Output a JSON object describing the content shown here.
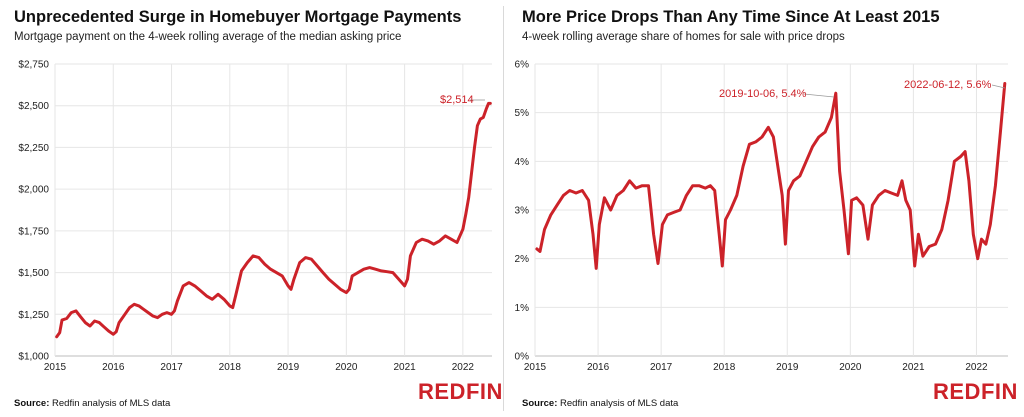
{
  "brand": {
    "logo": "REDFIN",
    "accent": "#cc2229",
    "grid": "#e6e6e6"
  },
  "source": {
    "label": "Source:",
    "text": "Redfin analysis of MLS data"
  },
  "chart_data": [
    {
      "type": "line",
      "title": "Unprecedented Surge in Homebuyer Mortgage Payments",
      "subtitle": "Mortgage payment on the 4-week rolling average of the median asking price",
      "x_ticks": [
        "2015",
        "2016",
        "2017",
        "2018",
        "2019",
        "2020",
        "2021",
        "2022"
      ],
      "y_ticks": [
        "$1,000",
        "$1,250",
        "$1,500",
        "$1,750",
        "$2,000",
        "$2,250",
        "$2,500",
        "$2,750"
      ],
      "xlim": [
        2015.0,
        2022.5
      ],
      "ylim": [
        1000,
        2750
      ],
      "grid": true,
      "series": [
        {
          "color": "#cc2229",
          "x": [
            2015.03,
            2015.08,
            2015.12,
            2015.2,
            2015.28,
            2015.36,
            2015.44,
            2015.52,
            2015.6,
            2015.68,
            2015.76,
            2015.84,
            2015.92,
            2016.0,
            2016.05,
            2016.1,
            2016.2,
            2016.28,
            2016.36,
            2016.44,
            2016.52,
            2016.6,
            2016.68,
            2016.76,
            2016.84,
            2016.92,
            2017.0,
            2017.05,
            2017.1,
            2017.2,
            2017.3,
            2017.4,
            2017.5,
            2017.6,
            2017.7,
            2017.8,
            2017.9,
            2018.0,
            2018.05,
            2018.1,
            2018.2,
            2018.3,
            2018.4,
            2018.5,
            2018.6,
            2018.7,
            2018.8,
            2018.9,
            2019.0,
            2019.05,
            2019.1,
            2019.2,
            2019.3,
            2019.4,
            2019.5,
            2019.6,
            2019.7,
            2019.8,
            2019.9,
            2020.0,
            2020.05,
            2020.1,
            2020.2,
            2020.3,
            2020.4,
            2020.5,
            2020.6,
            2020.7,
            2020.8,
            2020.9,
            2021.0,
            2021.05,
            2021.1,
            2021.2,
            2021.3,
            2021.4,
            2021.5,
            2021.6,
            2021.7,
            2021.8,
            2021.9,
            2022.0,
            2022.05,
            2022.1,
            2022.15,
            2022.2,
            2022.25,
            2022.3,
            2022.35,
            2022.4,
            2022.44,
            2022.47
          ],
          "y": [
            1115,
            1140,
            1215,
            1225,
            1260,
            1270,
            1235,
            1200,
            1180,
            1210,
            1200,
            1175,
            1150,
            1130,
            1145,
            1200,
            1250,
            1290,
            1310,
            1300,
            1280,
            1260,
            1240,
            1230,
            1250,
            1260,
            1250,
            1270,
            1330,
            1420,
            1440,
            1420,
            1390,
            1360,
            1340,
            1370,
            1340,
            1300,
            1290,
            1360,
            1510,
            1560,
            1600,
            1590,
            1550,
            1520,
            1500,
            1480,
            1420,
            1400,
            1460,
            1560,
            1590,
            1580,
            1540,
            1500,
            1460,
            1430,
            1400,
            1380,
            1400,
            1480,
            1500,
            1520,
            1530,
            1520,
            1510,
            1505,
            1500,
            1460,
            1420,
            1460,
            1600,
            1680,
            1700,
            1690,
            1670,
            1690,
            1720,
            1700,
            1680,
            1760,
            1850,
            1950,
            2100,
            2250,
            2380,
            2420,
            2430,
            2480,
            2514,
            2514
          ]
        }
      ],
      "annotations": [
        {
          "text": "$2,514"
        }
      ]
    },
    {
      "type": "line",
      "title": "More Price Drops Than Any Time Since At Least 2015",
      "subtitle": "4-week rolling average share of homes for sale with price drops",
      "x_ticks": [
        "2015",
        "2016",
        "2017",
        "2018",
        "2019",
        "2020",
        "2021",
        "2022"
      ],
      "y_ticks": [
        "0%",
        "1%",
        "2%",
        "3%",
        "4%",
        "5%",
        "6%"
      ],
      "xlim": [
        2015.0,
        2022.5
      ],
      "ylim": [
        0,
        6
      ],
      "grid": true,
      "series": [
        {
          "color": "#cc2229",
          "x": [
            2015.03,
            2015.08,
            2015.15,
            2015.25,
            2015.35,
            2015.45,
            2015.55,
            2015.65,
            2015.75,
            2015.85,
            2015.92,
            2015.97,
            2016.02,
            2016.1,
            2016.2,
            2016.3,
            2016.4,
            2016.5,
            2016.6,
            2016.7,
            2016.8,
            2016.88,
            2016.95,
            2017.02,
            2017.1,
            2017.2,
            2017.3,
            2017.4,
            2017.5,
            2017.6,
            2017.7,
            2017.78,
            2017.85,
            2017.92,
            2017.97,
            2018.02,
            2018.1,
            2018.2,
            2018.3,
            2018.4,
            2018.5,
            2018.6,
            2018.7,
            2018.78,
            2018.85,
            2018.92,
            2018.97,
            2019.02,
            2019.1,
            2019.2,
            2019.3,
            2019.4,
            2019.5,
            2019.6,
            2019.7,
            2019.77,
            2019.83,
            2019.9,
            2019.97,
            2020.02,
            2020.1,
            2020.2,
            2020.28,
            2020.35,
            2020.45,
            2020.55,
            2020.65,
            2020.75,
            2020.82,
            2020.88,
            2020.95,
            2021.02,
            2021.08,
            2021.15,
            2021.25,
            2021.35,
            2021.45,
            2021.55,
            2021.65,
            2021.75,
            2021.82,
            2021.88,
            2021.95,
            2022.02,
            2022.08,
            2022.15,
            2022.22,
            2022.3,
            2022.38,
            2022.45
          ],
          "y": [
            2.2,
            2.15,
            2.6,
            2.9,
            3.1,
            3.3,
            3.4,
            3.35,
            3.4,
            3.2,
            2.5,
            1.8,
            2.7,
            3.25,
            3.0,
            3.3,
            3.4,
            3.6,
            3.45,
            3.5,
            3.5,
            2.5,
            1.9,
            2.7,
            2.9,
            2.95,
            3.0,
            3.3,
            3.5,
            3.5,
            3.45,
            3.5,
            3.4,
            2.5,
            1.85,
            2.8,
            3.0,
            3.3,
            3.9,
            4.35,
            4.4,
            4.5,
            4.7,
            4.5,
            3.9,
            3.3,
            2.3,
            3.4,
            3.6,
            3.7,
            4.0,
            4.3,
            4.5,
            4.6,
            4.9,
            5.4,
            3.8,
            3.0,
            2.1,
            3.2,
            3.25,
            3.1,
            2.4,
            3.1,
            3.3,
            3.4,
            3.35,
            3.3,
            3.6,
            3.2,
            3.0,
            1.85,
            2.5,
            2.05,
            2.25,
            2.3,
            2.6,
            3.2,
            4.0,
            4.1,
            4.2,
            3.6,
            2.5,
            2.0,
            2.4,
            2.3,
            2.7,
            3.5,
            4.6,
            5.6
          ]
        }
      ],
      "annotations": [
        {
          "text": "2019-10-06, 5.4%"
        },
        {
          "text": "2022-06-12, 5.6%"
        }
      ]
    }
  ]
}
